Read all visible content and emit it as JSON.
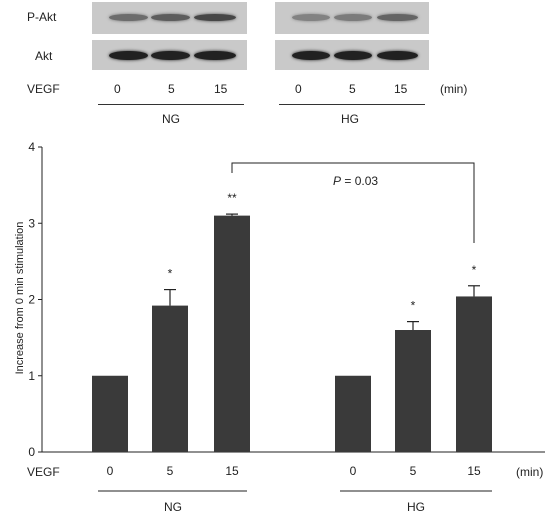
{
  "blot": {
    "row_labels": [
      "P-Akt",
      "Akt"
    ],
    "vegf_label": "VEGF",
    "times": [
      "0",
      "5",
      "15"
    ],
    "unit": "(min)",
    "groups": [
      "NG",
      "HG"
    ],
    "pakt_band_intensity": {
      "NG": [
        0.45,
        0.55,
        0.7
      ],
      "HG": [
        0.3,
        0.35,
        0.5
      ]
    },
    "akt_band_intensity": {
      "NG": [
        0.95,
        0.95,
        0.95
      ],
      "HG": [
        0.95,
        0.95,
        0.95
      ]
    }
  },
  "chart_data": {
    "type": "bar",
    "ylabel": "Increase from 0 min stimulation",
    "ylim": [
      0,
      4
    ],
    "yticks": [
      "0",
      "1",
      "2",
      "3",
      "4"
    ],
    "x_prefix": "VEGF",
    "x_unit": "(min)",
    "groups": [
      "NG",
      "HG"
    ],
    "categories": [
      "0",
      "5",
      "15",
      "0",
      "5",
      "15"
    ],
    "values": [
      1.0,
      1.92,
      3.1,
      1.0,
      1.6,
      2.04
    ],
    "errors": [
      0,
      0.21,
      0.02,
      0,
      0.11,
      0.14
    ],
    "significance": [
      "",
      "*",
      "**",
      "",
      "*",
      "*"
    ],
    "comparison": {
      "label_italic": "P",
      "label_rest": " = 0.03"
    },
    "bar_color": "#3a3a3a"
  }
}
